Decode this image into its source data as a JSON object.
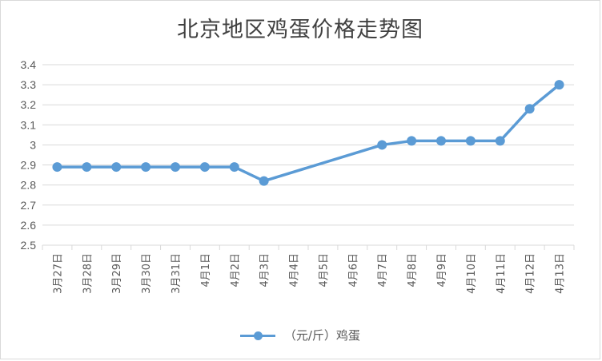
{
  "chart_data": {
    "type": "line",
    "title": "北京地区鸡蛋价格走势图",
    "categories": [
      "3月27日",
      "3月28日",
      "3月29日",
      "3月30日",
      "3月31日",
      "4月1日",
      "4月2日",
      "4月3日",
      "4月4日",
      "4月5日",
      "4月6日",
      "4月7日",
      "4月8日",
      "4月9日",
      "4月10日",
      "4月11日",
      "4月12日",
      "4月13日"
    ],
    "series": [
      {
        "name": "（元/斤）鸡蛋",
        "values": [
          2.89,
          2.89,
          2.89,
          2.89,
          2.89,
          2.89,
          2.89,
          2.82,
          null,
          null,
          null,
          3.0,
          3.02,
          3.02,
          3.02,
          3.02,
          3.18,
          3.3
        ]
      }
    ],
    "ylim": [
      2.5,
      3.4
    ],
    "yticks": [
      "2.5",
      "2.6",
      "2.7",
      "2.8",
      "2.9",
      "3",
      "3.1",
      "3.2",
      "3.3",
      "3.4"
    ],
    "xlabel": "",
    "ylabel": "",
    "grid": true,
    "legend_position": "bottom",
    "color": "#5b9bd5"
  }
}
